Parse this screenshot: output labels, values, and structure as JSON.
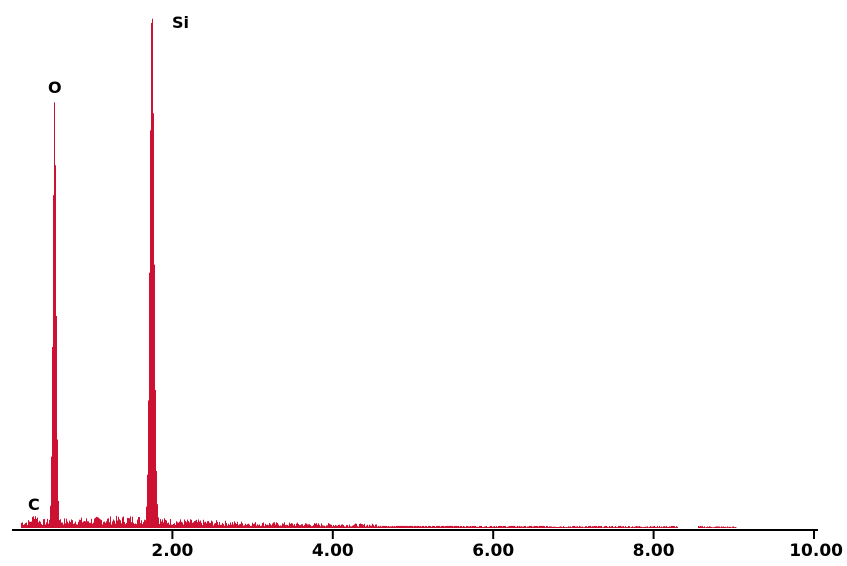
{
  "chart_data": {
    "type": "bar",
    "title": "",
    "xlabel": "",
    "ylabel": "",
    "xlim": [
      0.0,
      10.0
    ],
    "ylim": [
      0,
      1000
    ],
    "grid": false,
    "bar_color": "#cc1133",
    "x_ticks": [
      {
        "value": 2,
        "label": "2.00"
      },
      {
        "value": 4,
        "label": "4.00"
      },
      {
        "value": 6,
        "label": "6.00"
      },
      {
        "value": 8,
        "label": "8.00"
      },
      {
        "value": 10,
        "label": "10.00"
      }
    ],
    "peaks": [
      {
        "label": "C",
        "energy": 0.28,
        "counts": 12,
        "width": 0.03
      },
      {
        "label": "O",
        "energy": 0.525,
        "counts": 805,
        "width": 0.02
      },
      {
        "label": "Si",
        "energy": 1.74,
        "counts": 1000,
        "width": 0.026
      }
    ],
    "background": [
      {
        "x": 0.1,
        "y": 10
      },
      {
        "x": 0.5,
        "y": 12
      },
      {
        "x": 1.0,
        "y": 14
      },
      {
        "x": 1.5,
        "y": 16
      },
      {
        "x": 2.0,
        "y": 12
      },
      {
        "x": 3.0,
        "y": 8
      },
      {
        "x": 4.0,
        "y": 6
      },
      {
        "x": 5.0,
        "y": 5
      },
      {
        "x": 6.0,
        "y": 4
      },
      {
        "x": 7.0,
        "y": 3
      },
      {
        "x": 8.0,
        "y": 3
      },
      {
        "x": 8.3,
        "y": 3
      },
      {
        "x": 9.0,
        "y": 2
      },
      {
        "x": 9.05,
        "y": 0
      }
    ]
  }
}
